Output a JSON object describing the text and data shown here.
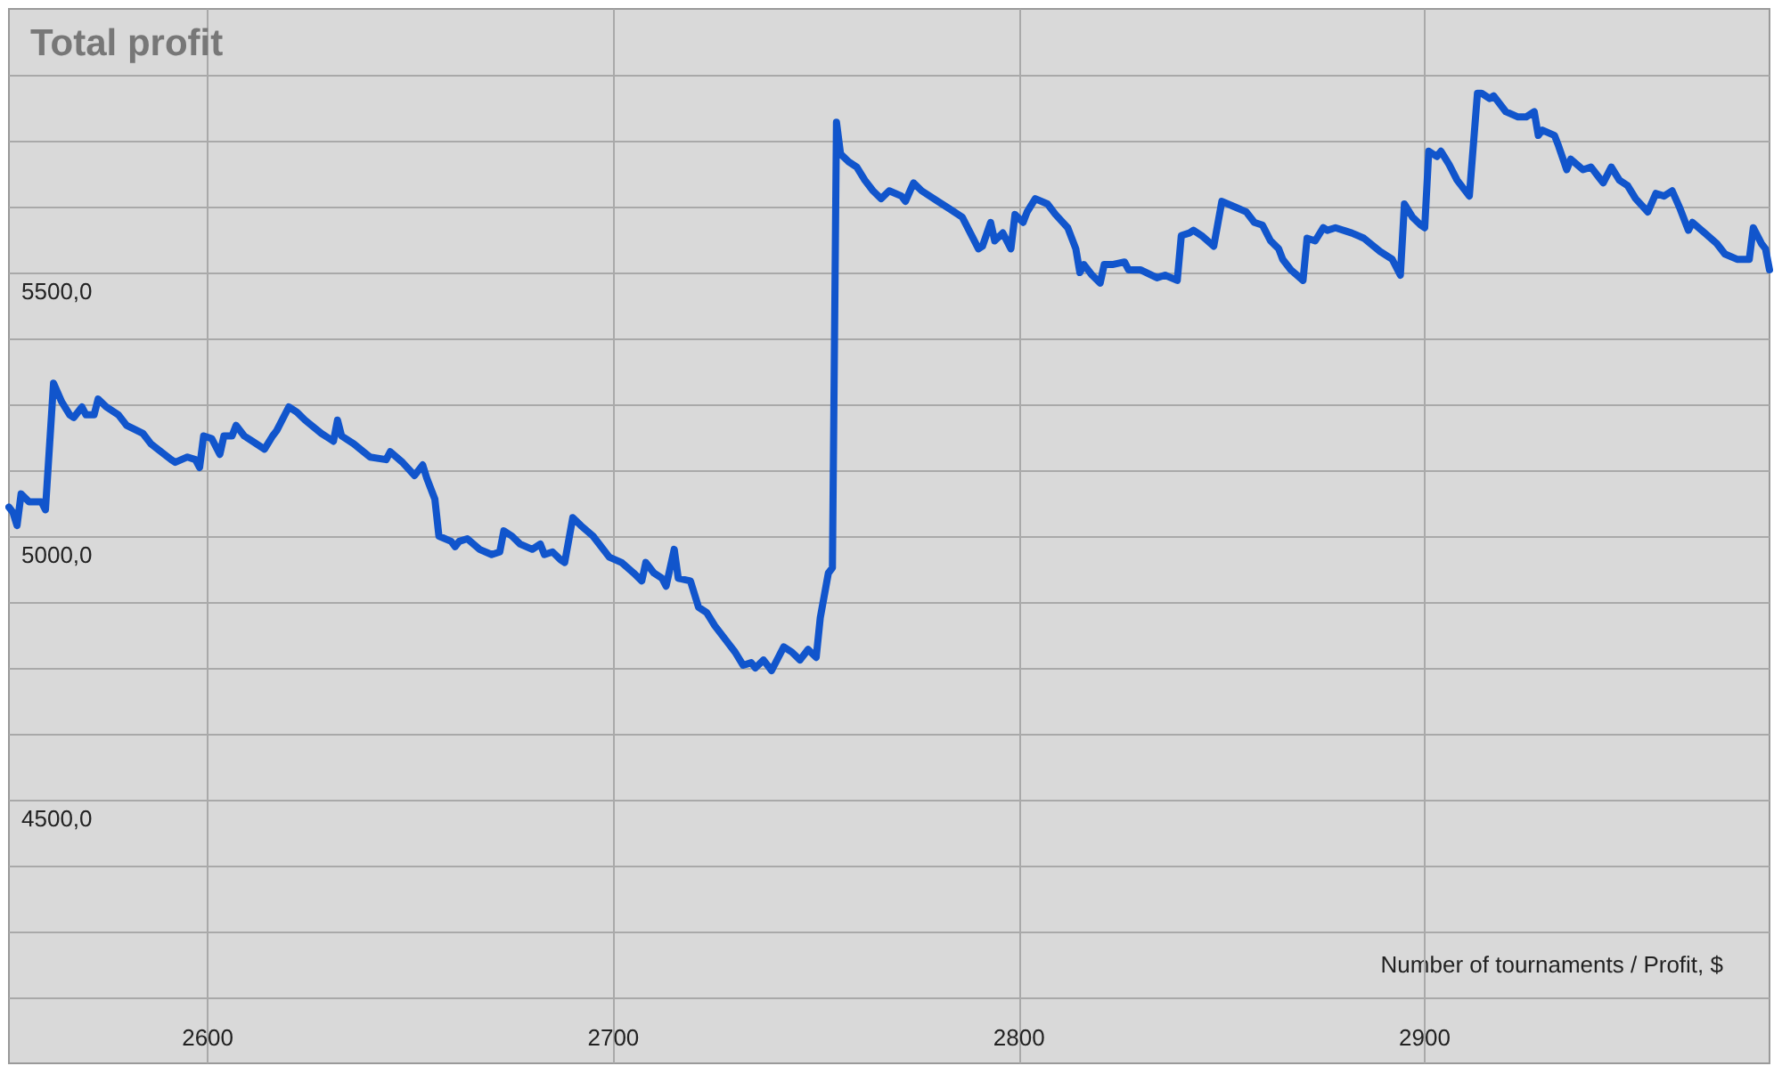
{
  "chart_data": {
    "type": "line",
    "title": "Total profit",
    "annotations": [
      "Number of tournaments / Profit, $"
    ],
    "x": [
      2551,
      2552,
      2553,
      2554,
      2556,
      2559,
      2560,
      2562,
      2564,
      2566,
      2567,
      2569,
      2570,
      2572,
      2573,
      2575,
      2578,
      2580,
      2584,
      2586,
      2591,
      2592,
      2595,
      2597,
      2598,
      2599,
      2601,
      2603,
      2604,
      2606,
      2607,
      2609,
      2611,
      2614,
      2616,
      2617,
      2620,
      2622,
      2624,
      2628,
      2630,
      2631,
      2632,
      2633,
      2636,
      2640,
      2644,
      2645,
      2648,
      2651,
      2653,
      2654,
      2656,
      2657,
      2660,
      2661,
      2662,
      2664,
      2667,
      2670,
      2672,
      2673,
      2675,
      2677,
      2680,
      2682,
      2683,
      2685,
      2687,
      2688,
      2690,
      2692,
      2695,
      2699,
      2702,
      2705,
      2707,
      2708,
      2710,
      2712,
      2713,
      2715,
      2716,
      2719,
      2721,
      2723,
      2725,
      2728,
      2730,
      2732,
      2734,
      2735,
      2737,
      2739,
      2742,
      2744,
      2746,
      2748,
      2750,
      2751,
      2753,
      2754,
      2755,
      2756,
      2758,
      2760,
      2762,
      2764,
      2766,
      2768,
      2771,
      2772,
      2774,
      2776,
      2780,
      2783,
      2786,
      2788,
      2790,
      2791,
      2793,
      2794,
      2796,
      2798,
      2799,
      2801,
      2802,
      2804,
      2807,
      2809,
      2812,
      2814,
      2815,
      2816,
      2818,
      2820,
      2821,
      2823,
      2826,
      2827,
      2830,
      2834,
      2836,
      2839,
      2840,
      2842,
      2843,
      2845,
      2848,
      2850,
      2853,
      2856,
      2858,
      2860,
      2862,
      2864,
      2865,
      2867,
      2870,
      2871,
      2873,
      2875,
      2876,
      2878,
      2882,
      2885,
      2889,
      2892,
      2894,
      2895,
      2897,
      2899,
      2900,
      2901,
      2903,
      2904,
      2906,
      2908,
      2911,
      2913,
      2914,
      2916,
      2917,
      2920,
      2923,
      2925,
      2927,
      2928,
      2929,
      2932,
      2933,
      2935,
      2936,
      2939,
      2941,
      2943,
      2944,
      2946,
      2948,
      2950,
      2952,
      2955,
      2957,
      2959,
      2961,
      2963,
      2965,
      2966,
      2969,
      2972,
      2974,
      2977,
      2980,
      2981,
      2983,
      2984,
      2985
    ],
    "values": [
      5055,
      5045,
      5020,
      5080,
      5065,
      5065,
      5050,
      5290,
      5255,
      5230,
      5225,
      5245,
      5230,
      5230,
      5260,
      5245,
      5230,
      5210,
      5195,
      5175,
      5145,
      5140,
      5150,
      5145,
      5130,
      5190,
      5185,
      5155,
      5190,
      5190,
      5210,
      5190,
      5180,
      5165,
      5190,
      5200,
      5245,
      5235,
      5220,
      5195,
      5185,
      5180,
      5220,
      5190,
      5175,
      5150,
      5145,
      5160,
      5140,
      5115,
      5135,
      5110,
      5070,
      5000,
      4990,
      4980,
      4990,
      4995,
      4975,
      4965,
      4970,
      5010,
      5000,
      4985,
      4975,
      4985,
      4965,
      4970,
      4955,
      4950,
      5035,
      5020,
      5000,
      4960,
      4950,
      4930,
      4915,
      4950,
      4930,
      4920,
      4905,
      4975,
      4920,
      4915,
      4865,
      4855,
      4830,
      4800,
      4780,
      4755,
      4760,
      4750,
      4765,
      4745,
      4790,
      4780,
      4765,
      4785,
      4770,
      4845,
      4930,
      4940,
      5785,
      5725,
      5710,
      5700,
      5675,
      5655,
      5640,
      5655,
      5645,
      5635,
      5670,
      5655,
      5635,
      5620,
      5605,
      5575,
      5545,
      5550,
      5595,
      5560,
      5575,
      5545,
      5610,
      5595,
      5615,
      5640,
      5630,
      5610,
      5585,
      5545,
      5500,
      5515,
      5495,
      5480,
      5515,
      5515,
      5520,
      5505,
      5505,
      5490,
      5495,
      5485,
      5570,
      5575,
      5580,
      5570,
      5550,
      5635,
      5625,
      5615,
      5595,
      5590,
      5560,
      5545,
      5525,
      5505,
      5485,
      5565,
      5560,
      5585,
      5580,
      5585,
      5575,
      5565,
      5540,
      5525,
      5495,
      5630,
      5605,
      5590,
      5585,
      5730,
      5720,
      5730,
      5705,
      5675,
      5645,
      5840,
      5840,
      5830,
      5835,
      5805,
      5795,
      5795,
      5805,
      5760,
      5770,
      5760,
      5740,
      5695,
      5715,
      5695,
      5700,
      5680,
      5670,
      5700,
      5675,
      5665,
      5640,
      5615,
      5650,
      5645,
      5655,
      5620,
      5580,
      5595,
      5575,
      5555,
      5535,
      5525,
      5525,
      5585,
      5555,
      5545,
      5505
    ],
    "color": "#1155cc",
    "line_style": "solid",
    "xlim": [
      2551,
      2985
    ],
    "xticks": [
      2600,
      2700,
      2800,
      2900
    ],
    "ylim": [
      4000,
      6000
    ],
    "yticks": [
      {
        "value": 4125,
        "label": null
      },
      {
        "value": 4250,
        "label": null
      },
      {
        "value": 4375,
        "label": null
      },
      {
        "value": 4500,
        "label": "4500,0"
      },
      {
        "value": 4625,
        "label": null
      },
      {
        "value": 4750,
        "label": null
      },
      {
        "value": 4875,
        "label": null
      },
      {
        "value": 5000,
        "label": "5000,0"
      },
      {
        "value": 5125,
        "label": null
      },
      {
        "value": 5250,
        "label": null
      },
      {
        "value": 5375,
        "label": null
      },
      {
        "value": 5500,
        "label": "5500,0"
      },
      {
        "value": 5625,
        "label": null
      },
      {
        "value": 5750,
        "label": null
      },
      {
        "value": 5875,
        "label": null
      }
    ],
    "grid": true
  }
}
